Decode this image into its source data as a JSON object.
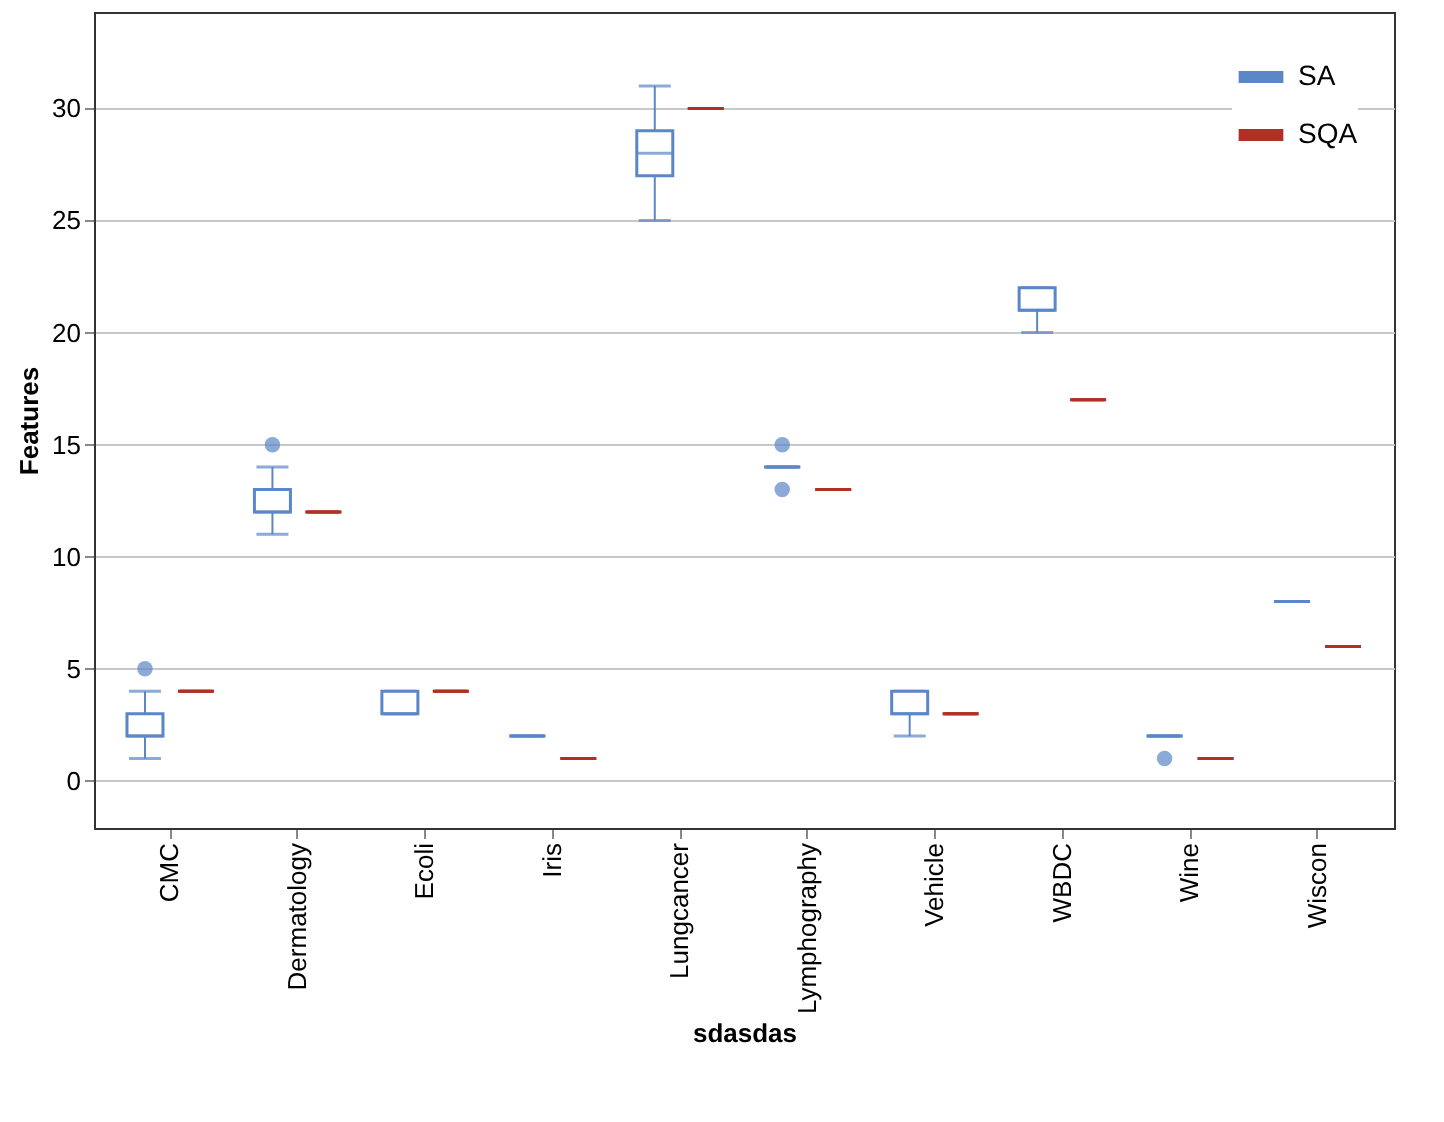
{
  "chart_data": {
    "type": "box",
    "xlabel": "sdasdas",
    "ylabel": "Features",
    "categories": [
      "CMC",
      "Dermatology",
      "Ecoli",
      "Iris",
      "Lungcancer",
      "Lymphography",
      "Vehicle",
      "WBDC",
      "Wine",
      "Wiscon"
    ],
    "ylim": [
      -2.1,
      34.3
    ],
    "yticks": [
      0,
      5,
      10,
      15,
      20,
      25,
      30
    ],
    "grid": "y",
    "legend": "top right",
    "series": [
      {
        "name": "SA",
        "color": "#5b86c8",
        "boxes": [
          {
            "low": 1,
            "q1": 2,
            "median": 2,
            "q3": 3,
            "high": 4,
            "outliers": [
              5
            ]
          },
          {
            "low": 11,
            "q1": 12,
            "median": 12,
            "q3": 13,
            "high": 14,
            "outliers": [
              15
            ]
          },
          {
            "low": 3,
            "q1": 3,
            "median": 3,
            "q3": 4,
            "high": 4
          },
          {
            "low": 2,
            "q1": 2,
            "median": 2,
            "q3": 2,
            "high": 2
          },
          {
            "low": 25,
            "q1": 27,
            "median": 28,
            "q3": 29,
            "high": 31
          },
          {
            "low": 14,
            "q1": 14,
            "median": 14,
            "q3": 14,
            "high": 14,
            "outliers": [
              13,
              15
            ]
          },
          {
            "low": 2,
            "q1": 3,
            "median": 3,
            "q3": 4,
            "high": 4
          },
          {
            "low": 20,
            "q1": 21,
            "median": 21,
            "q3": 22,
            "high": 22
          },
          {
            "low": 2,
            "q1": 2,
            "median": 2,
            "q3": 2,
            "high": 2,
            "outliers": [
              1
            ]
          },
          {
            "low": 8,
            "q1": 8,
            "median": 8,
            "q3": 8,
            "high": 8
          }
        ]
      },
      {
        "name": "SQA",
        "color": "#b03027",
        "boxes": [
          {
            "low": 4,
            "q1": 4,
            "median": 4,
            "q3": 4,
            "high": 4
          },
          {
            "low": 12,
            "q1": 12,
            "median": 12,
            "q3": 12,
            "high": 12
          },
          {
            "low": 4,
            "q1": 4,
            "median": 4,
            "q3": 4,
            "high": 4
          },
          {
            "low": 1,
            "q1": 1,
            "median": 1,
            "q3": 1,
            "high": 1
          },
          {
            "low": 30,
            "q1": 30,
            "median": 30,
            "q3": 30,
            "high": 30
          },
          {
            "low": 13,
            "q1": 13,
            "median": 13,
            "q3": 13,
            "high": 13
          },
          {
            "low": 3,
            "q1": 3,
            "median": 3,
            "q3": 3,
            "high": 3
          },
          {
            "low": 17,
            "q1": 17,
            "median": 17,
            "q3": 17,
            "high": 17
          },
          {
            "low": 1,
            "q1": 1,
            "median": 1,
            "q3": 1,
            "high": 1
          },
          {
            "low": 6,
            "q1": 6,
            "median": 6,
            "q3": 6,
            "high": 6
          }
        ]
      }
    ]
  }
}
